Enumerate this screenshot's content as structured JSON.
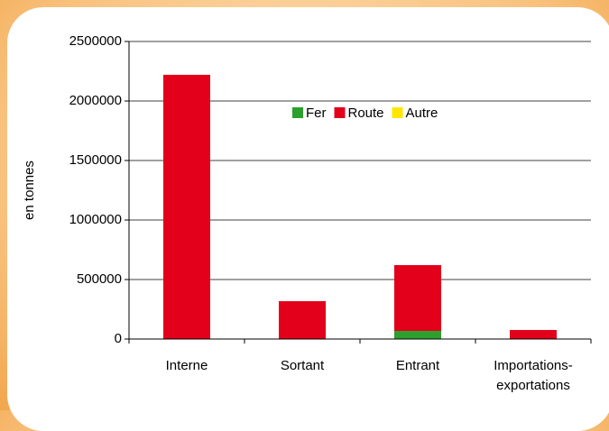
{
  "chart_data": {
    "type": "stacked_bar",
    "y_label": "en tonnes",
    "categories": [
      "Interne",
      "Sortant",
      "Entrant",
      "Importations-exportations"
    ],
    "series": [
      {
        "name": "Fer",
        "color": "#2ca02c",
        "values": [
          0,
          0,
          68000,
          0
        ]
      },
      {
        "name": "Route",
        "color": "#e2001a",
        "values": [
          2220000,
          318000,
          553000,
          76000
        ]
      },
      {
        "name": "Autre",
        "color": "#ffe600",
        "values": [
          0,
          0,
          0,
          0
        ]
      }
    ],
    "ylim": [
      0,
      2500000
    ],
    "yticks": [
      0,
      500000,
      1000000,
      1500000,
      2000000,
      2500000
    ],
    "grid": true,
    "legend": "top"
  }
}
